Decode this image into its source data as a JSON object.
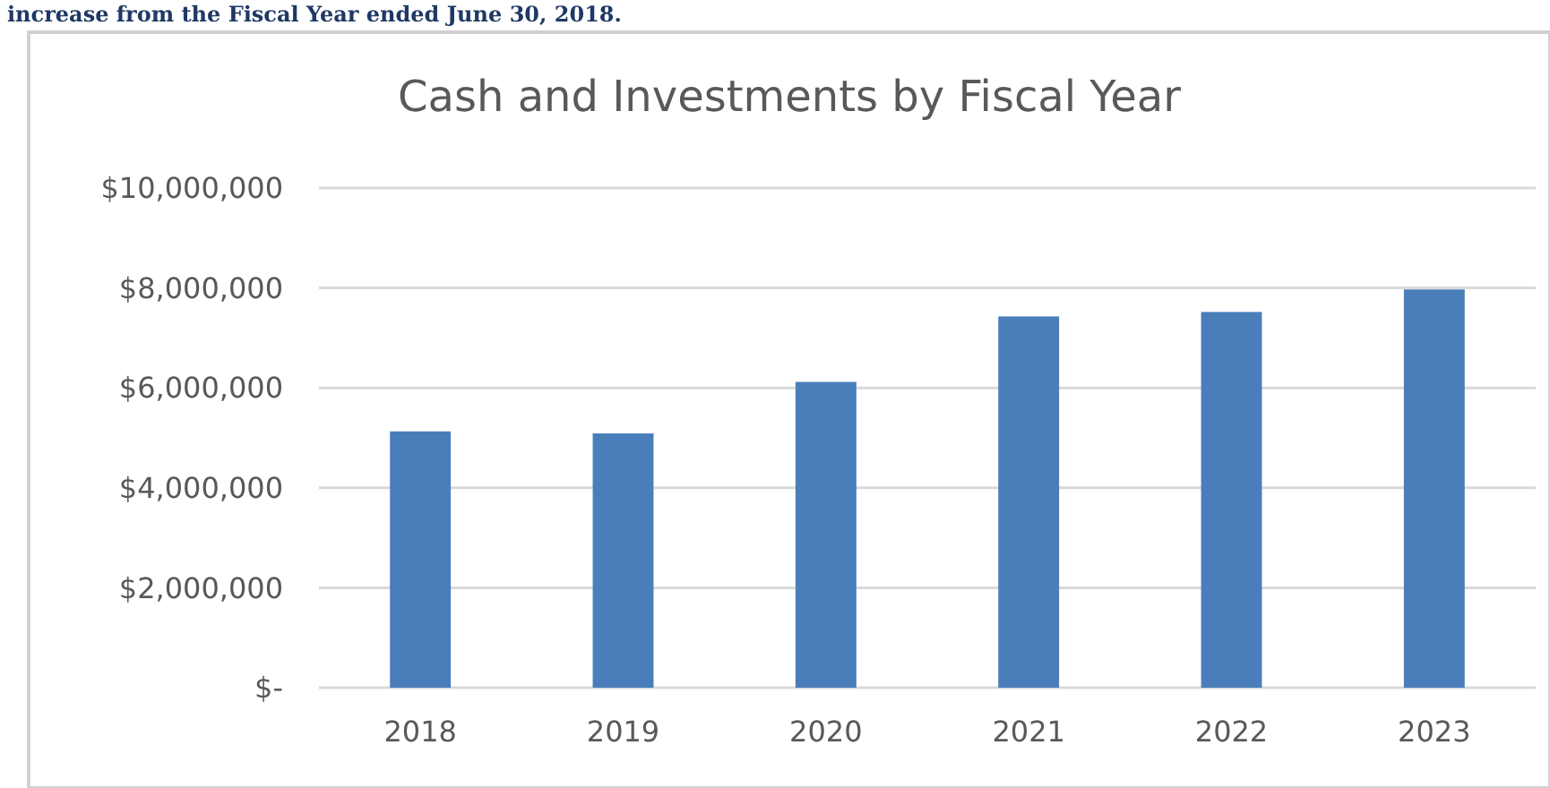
{
  "chart_data": {
    "type": "bar",
    "title": "Cash and Investments by Fiscal Year",
    "annotations": [
      "increase from the Fiscal Year ended June 30, 2018."
    ],
    "categories": [
      "2018",
      "2019",
      "2020",
      "2021",
      "2022",
      "2023"
    ],
    "values": [
      5130000,
      5090000,
      6120000,
      7430000,
      7520000,
      7970000
    ],
    "color": "#4a7ebb",
    "ylim": [
      0,
      10000000
    ],
    "yticks": [
      {
        "value": 0,
        "label": "$-"
      },
      {
        "value": 2000000,
        "label": "$2,000,000"
      },
      {
        "value": 4000000,
        "label": "$4,000,000"
      },
      {
        "value": 6000000,
        "label": "$6,000,000"
      },
      {
        "value": 8000000,
        "label": "$8,000,000"
      },
      {
        "value": 10000000,
        "label": "$10,000,000"
      }
    ],
    "grid": "y"
  }
}
